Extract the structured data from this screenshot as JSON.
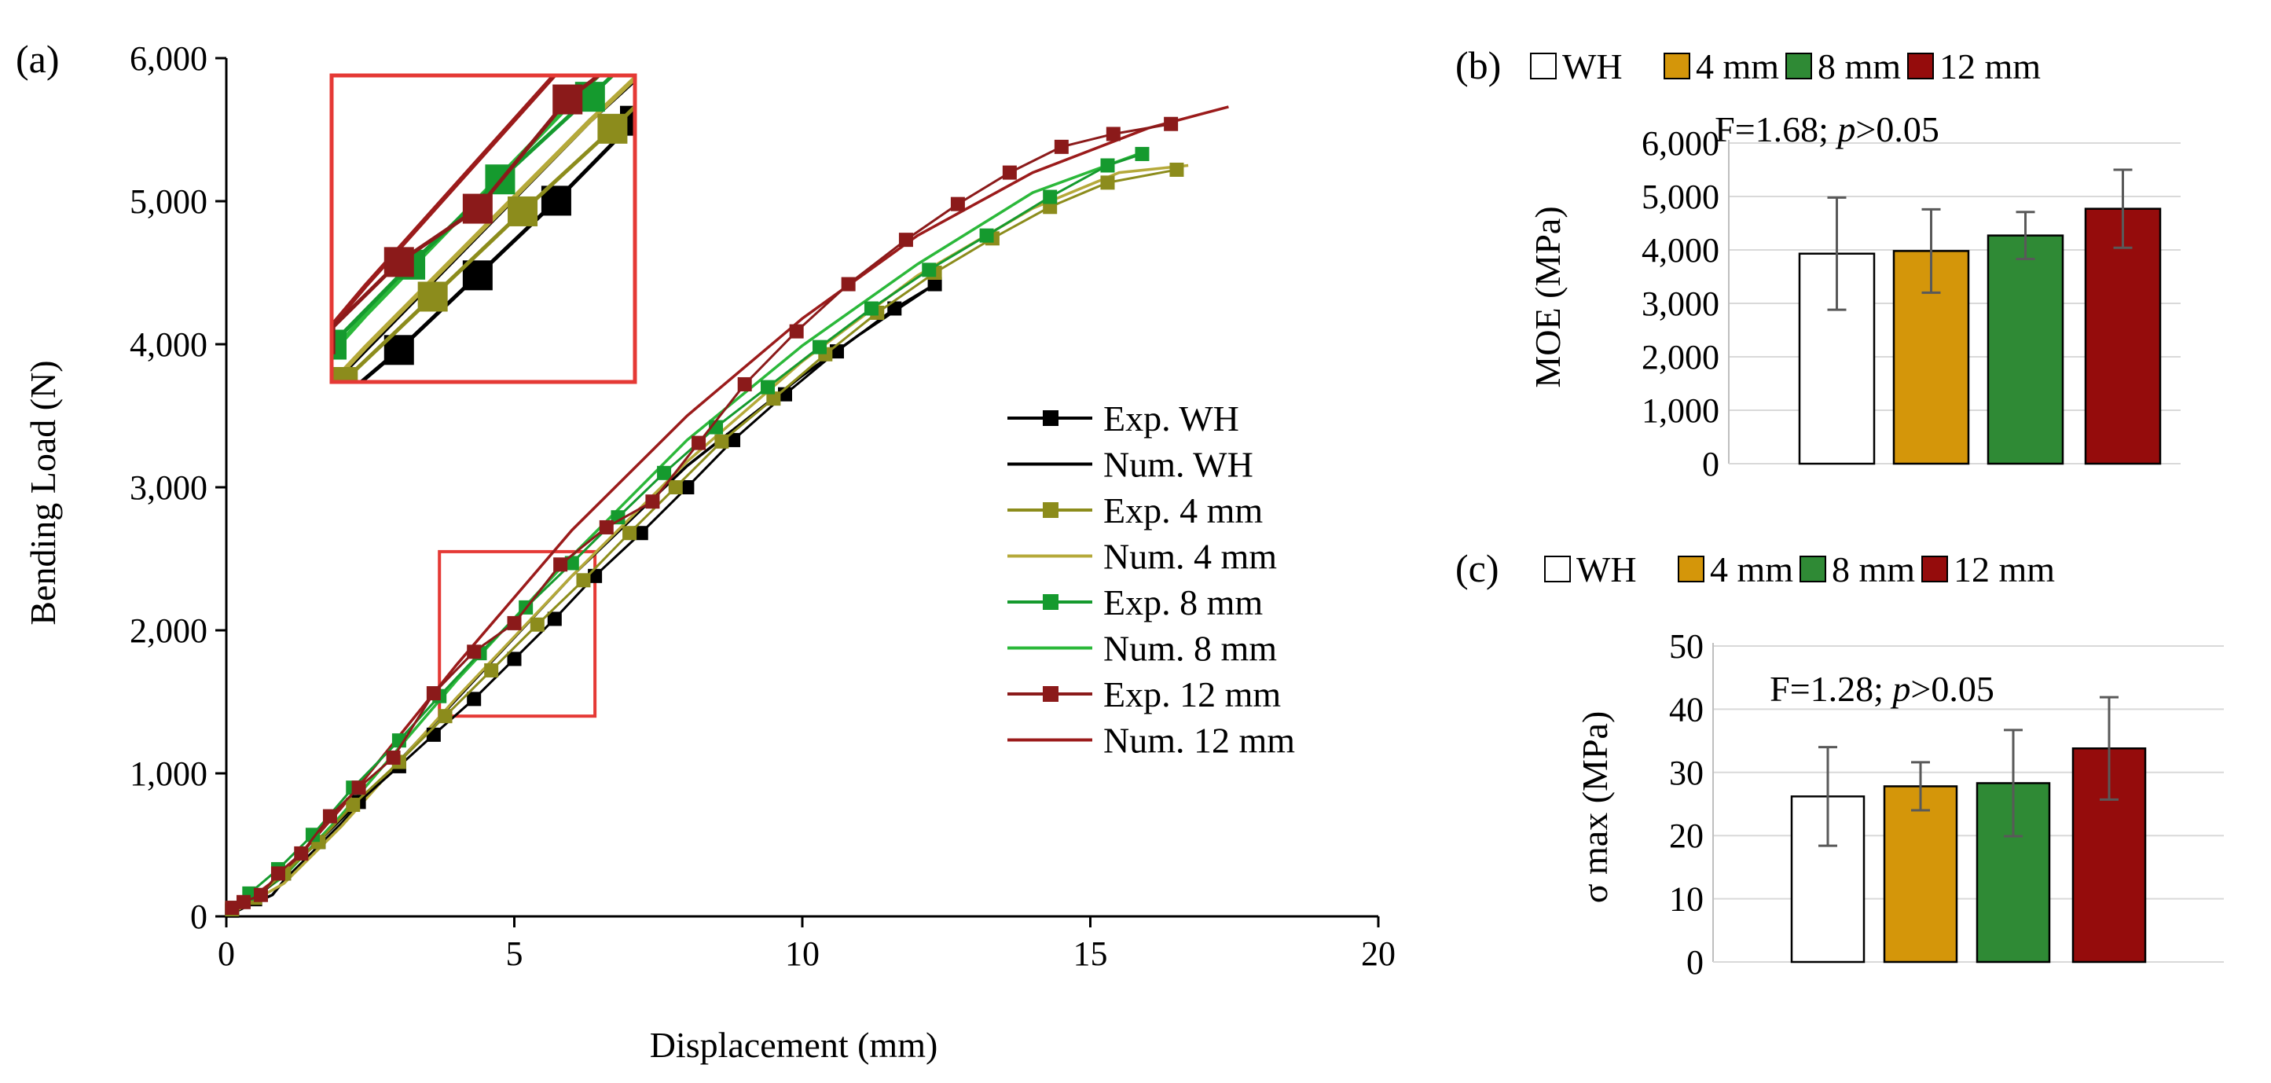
{
  "chart_data": [
    {
      "panel": "(a)",
      "type": "line",
      "xlabel": "Displacement (mm)",
      "ylabel": "Bending Load (N)",
      "xlim": [
        0,
        20
      ],
      "ylim": [
        0,
        6000
      ],
      "x_ticks": [
        "0",
        "5",
        "10",
        "15",
        "20"
      ],
      "y_ticks": [
        "0",
        "1,000",
        "2,000",
        "3,000",
        "4,000",
        "5,000",
        "6,000"
      ],
      "legend": [
        "Exp. WH",
        "Num. WH",
        "Exp. 4 mm",
        "Num. 4 mm",
        "Exp. 8 mm",
        "Num. 8 mm",
        "Exp. 12 mm",
        "Num. 12 mm"
      ],
      "series": [
        {
          "name": "Exp. WH",
          "color": "#000000",
          "marker": "square",
          "x": [
            0.1,
            0.5,
            1.0,
            1.6,
            2.3,
            3.0,
            3.6,
            4.3,
            5.0,
            5.7,
            6.4,
            7.2,
            8.0,
            8.8,
            9.7,
            10.6,
            11.6,
            12.3
          ],
          "y": [
            40,
            120,
            300,
            520,
            800,
            1050,
            1270,
            1520,
            1800,
            2080,
            2380,
            2680,
            3000,
            3330,
            3650,
            3950,
            4250,
            4420
          ]
        },
        {
          "name": "Num. WH",
          "color": "#000000",
          "marker": "none",
          "x": [
            0,
            0.3,
            0.8,
            1.0,
            2.0,
            4.0,
            6.0,
            8.0,
            10.0,
            11.0,
            12.3
          ],
          "y": [
            0,
            60,
            150,
            250,
            650,
            1520,
            2380,
            3150,
            3780,
            4070,
            4420
          ]
        },
        {
          "name": "Exp. 4 mm",
          "color": "#8c8c1c",
          "marker": "square",
          "x": [
            0.1,
            0.5,
            1.0,
            1.6,
            2.2,
            3.0,
            3.8,
            4.6,
            5.4,
            6.2,
            7.0,
            7.8,
            8.6,
            9.5,
            10.4,
            11.3,
            12.3,
            13.3,
            14.3,
            15.3,
            16.5
          ],
          "y": [
            50,
            130,
            300,
            520,
            780,
            1080,
            1400,
            1720,
            2040,
            2350,
            2680,
            3000,
            3320,
            3620,
            3930,
            4220,
            4500,
            4740,
            4960,
            5130,
            5220
          ]
        },
        {
          "name": "Num. 4 mm",
          "color": "#b5a93a",
          "marker": "none",
          "x": [
            0,
            1.0,
            2.0,
            4.0,
            6.0,
            8.0,
            10.0,
            12.0,
            14.0,
            15.5,
            16.7
          ],
          "y": [
            0,
            230,
            630,
            1530,
            2380,
            3180,
            3880,
            4480,
            4950,
            5200,
            5250
          ]
        },
        {
          "name": "Exp. 8 mm",
          "color": "#159a2e",
          "marker": "square",
          "x": [
            0.1,
            0.4,
            0.9,
            1.5,
            2.2,
            3.0,
            3.7,
            4.4,
            5.2,
            6.0,
            6.8,
            7.6,
            8.5,
            9.4,
            10.3,
            11.2,
            12.2,
            13.2,
            14.3,
            15.3,
            15.9
          ],
          "y": [
            60,
            160,
            330,
            570,
            900,
            1230,
            1540,
            1840,
            2160,
            2470,
            2790,
            3100,
            3420,
            3700,
            3980,
            4250,
            4520,
            4760,
            5030,
            5250,
            5330
          ]
        },
        {
          "name": "Num. 8 mm",
          "color": "#2bb83a",
          "marker": "none",
          "x": [
            0,
            1.0,
            2.0,
            4.0,
            6.0,
            8.0,
            10.0,
            12.0,
            14.0,
            15.9
          ],
          "y": [
            0,
            280,
            710,
            1650,
            2520,
            3330,
            3990,
            4560,
            5060,
            5340
          ]
        },
        {
          "name": "Exp. 12 mm",
          "color": "#8b1a1a",
          "marker": "square",
          "x": [
            0.1,
            0.3,
            0.6,
            0.9,
            1.3,
            1.8,
            2.3,
            2.9,
            3.6,
            4.3,
            5.0,
            5.8,
            6.6,
            7.4,
            8.2,
            9.0,
            9.9,
            10.8,
            11.8,
            12.7,
            13.6,
            14.5,
            15.4,
            16.4
          ],
          "y": [
            60,
            100,
            150,
            300,
            440,
            700,
            900,
            1110,
            1560,
            1850,
            2050,
            2460,
            2720,
            2900,
            3310,
            3720,
            4090,
            4420,
            4730,
            4980,
            5200,
            5380,
            5470,
            5540
          ]
        },
        {
          "name": "Num. 12 mm",
          "color": "#9b1b1b",
          "marker": "none",
          "x": [
            0,
            1.0,
            2.0,
            4.0,
            6.0,
            8.0,
            10.0,
            12.0,
            14.0,
            16.0,
            17.4
          ],
          "y": [
            0,
            300,
            760,
            1760,
            2700,
            3500,
            4180,
            4760,
            5200,
            5510,
            5660
          ]
        }
      ],
      "annotations": [
        "zoom box on curves around x 3.7–6.4 mm, load 1,400–2,550 N, shown enlarged in the inset at upper left"
      ]
    },
    {
      "panel": "(b)",
      "type": "bar",
      "legend": [
        "WH",
        "4 mm",
        "8 mm",
        "12 mm"
      ],
      "categories": [
        "WH",
        "4 mm",
        "8 mm",
        "12 mm"
      ],
      "values": [
        3930,
        3980,
        4270,
        4770
      ],
      "error": [
        1050,
        780,
        440,
        730
      ],
      "colors": [
        "#ffffff",
        "#d4960a",
        "#2f8a35",
        "#950c0c"
      ],
      "ylabel": "MOE (MPa)",
      "ylim": [
        0,
        6000
      ],
      "y_ticks": [
        "0",
        "1,000",
        "2,000",
        "3,000",
        "4,000",
        "5,000",
        "6,000"
      ],
      "stat_prefix": "F=1.68; ",
      "stat_p": "p",
      "stat_suffix": ">0.05"
    },
    {
      "panel": "(c)",
      "type": "bar",
      "legend": [
        "WH",
        "4 mm",
        "8 mm",
        "12 mm"
      ],
      "categories": [
        "WH",
        "4 mm",
        "8 mm",
        "12 mm"
      ],
      "values": [
        26.2,
        27.8,
        28.3,
        33.8
      ],
      "error": [
        7.8,
        3.8,
        8.4,
        8.1
      ],
      "colors": [
        "#ffffff",
        "#d4960a",
        "#2f8a35",
        "#950c0c"
      ],
      "ylabel": "σ max (MPa)",
      "ylim": [
        0,
        50
      ],
      "y_ticks": [
        "0",
        "10",
        "20",
        "30",
        "40",
        "50"
      ],
      "stat_prefix": "F=1.28; ",
      "stat_p": "p",
      "stat_suffix": ">0.05"
    }
  ]
}
